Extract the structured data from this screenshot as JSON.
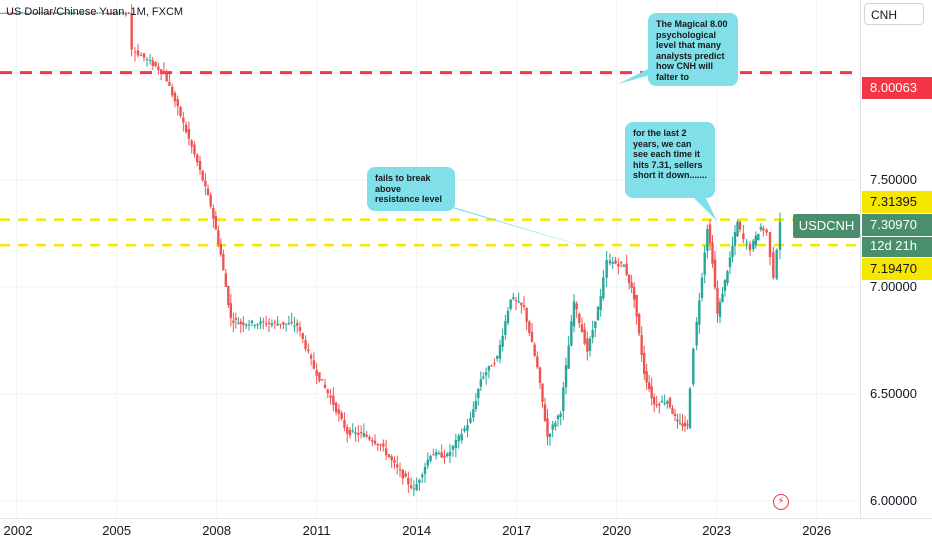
{
  "title": "US Dollar/Chinese Yuan, 1M, FXCM",
  "currency": "CNH",
  "symbol": "USDCNH",
  "countdown": "12d 21h",
  "colors": {
    "up": "#26a69a",
    "down": "#ef5350",
    "resistance": "#f23645",
    "yellow": "#f7e600",
    "note": "#80dfe9",
    "symbol_tag": "#4a8f6b"
  },
  "price_labels": [
    {
      "value": "8.00063",
      "style": "red"
    },
    {
      "value": "7.31395",
      "style": "yellow"
    },
    {
      "value": "7.30970",
      "style": "green"
    },
    {
      "value": "7.19470",
      "style": "yellow"
    }
  ],
  "annotations": [
    {
      "id": "magical",
      "text": "The Magical 8.00 psychological level that many analysts predict how CNH will falter to"
    },
    {
      "id": "last2",
      "text": "for the last 2 years, we can see each time it hits 7.31, sellers short it down......."
    },
    {
      "id": "fails",
      "text": "fails to break above resistance level"
    }
  ],
  "icons": {
    "alert": "lightning-bolt-icon"
  },
  "chart_data": {
    "type": "candlestick",
    "title": "US Dollar/Chinese Yuan, 1M, FXCM",
    "y_ticks": [
      "6.00000",
      "6.50000",
      "7.00000",
      "7.50000"
    ],
    "x_ticks": [
      "2002",
      "2005",
      "2008",
      "2011",
      "2014",
      "2017",
      "2020",
      "2023",
      "2026"
    ],
    "ylim": [
      5.92,
      8.34
    ],
    "xlim": [
      2001.5,
      2027.3
    ],
    "horizontal_lines": [
      {
        "value": 8.00063,
        "style": "red-dashed"
      },
      {
        "value": 7.31395,
        "style": "yellow-dashed"
      },
      {
        "value": 7.1947,
        "style": "yellow-dashed"
      }
    ],
    "last_price": 7.3097,
    "series": [
      {
        "values": [
          [
            2001.5,
            8.28
          ],
          [
            2002.5,
            8.28
          ],
          [
            2003.5,
            8.28
          ],
          [
            2004.5,
            8.28
          ],
          [
            2005.45,
            8.28
          ],
          [
            2005.55,
            8.11
          ],
          [
            2006.0,
            8.06
          ],
          [
            2006.5,
            8.0
          ],
          [
            2007.0,
            7.8
          ],
          [
            2007.5,
            7.58
          ],
          [
            2007.9,
            7.38
          ],
          [
            2008.2,
            7.15
          ],
          [
            2008.5,
            6.85
          ],
          [
            2008.8,
            6.83
          ],
          [
            2010.0,
            6.83
          ],
          [
            2010.5,
            6.82
          ],
          [
            2011.0,
            6.62
          ],
          [
            2011.5,
            6.48
          ],
          [
            2012.0,
            6.32
          ],
          [
            2012.5,
            6.31
          ],
          [
            2013.0,
            6.26
          ],
          [
            2013.5,
            6.15
          ],
          [
            2014.0,
            6.05
          ],
          [
            2014.5,
            6.22
          ],
          [
            2015.0,
            6.21
          ],
          [
            2015.7,
            6.38
          ],
          [
            2016.0,
            6.57
          ],
          [
            2016.5,
            6.67
          ],
          [
            2016.9,
            6.95
          ],
          [
            2017.3,
            6.9
          ],
          [
            2017.7,
            6.62
          ],
          [
            2018.0,
            6.3
          ],
          [
            2018.4,
            6.42
          ],
          [
            2018.8,
            6.93
          ],
          [
            2019.2,
            6.7
          ],
          [
            2019.6,
            6.95
          ],
          [
            2019.8,
            7.12
          ],
          [
            2020.3,
            7.1
          ],
          [
            2020.6,
            6.95
          ],
          [
            2020.9,
            6.6
          ],
          [
            2021.2,
            6.45
          ],
          [
            2021.6,
            6.47
          ],
          [
            2021.9,
            6.36
          ],
          [
            2022.2,
            6.35
          ],
          [
            2022.4,
            6.72
          ],
          [
            2022.8,
            7.28
          ],
          [
            2022.95,
            7.12
          ],
          [
            2023.1,
            6.87
          ],
          [
            2023.4,
            7.08
          ],
          [
            2023.7,
            7.3
          ],
          [
            2023.9,
            7.22
          ],
          [
            2024.1,
            7.18
          ],
          [
            2024.4,
            7.28
          ],
          [
            2024.6,
            7.25
          ],
          [
            2024.8,
            7.05
          ],
          [
            2025.0,
            7.31
          ]
        ]
      }
    ]
  }
}
